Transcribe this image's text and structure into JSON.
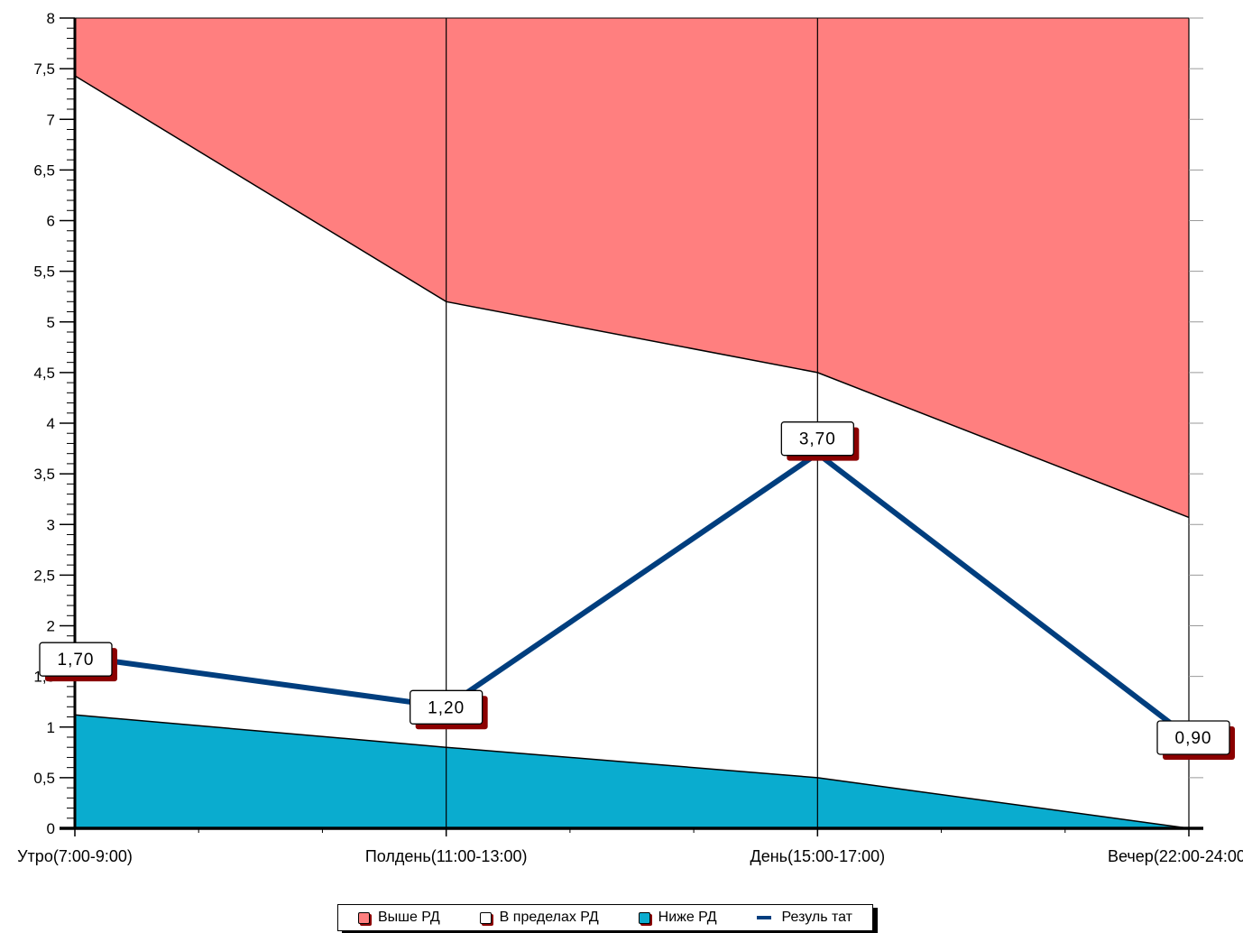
{
  "chart_data": {
    "type": "area",
    "categories": [
      "Утро(7:00-9:00)",
      "Полдень(11:00-13:00)",
      "День(15:00-17:00)",
      "Вечер(22:00-24:00)"
    ],
    "ylim": [
      0,
      8
    ],
    "yticks": [
      "0",
      "0,5",
      "1",
      "1,5",
      "2",
      "2,5",
      "3",
      "3,5",
      "4",
      "4,5",
      "5",
      "5,5",
      "6",
      "6,5",
      "7",
      "7,5",
      "8"
    ],
    "grid": "vertical lines at categories",
    "legend_position": "bottom-center",
    "series": [
      {
        "name": "Выше РД",
        "kind": "area",
        "color": "#ff7f7f",
        "values": [
          8,
          8,
          8,
          8
        ]
      },
      {
        "name": "В пределах РД",
        "kind": "area",
        "color": "#ffffff",
        "values": [
          7.43,
          5.2,
          4.5,
          3.07
        ]
      },
      {
        "name": "Ниже РД",
        "kind": "area",
        "color": "#0aaccf",
        "values": [
          1.12,
          0.8,
          0.5,
          0
        ]
      },
      {
        "name": "Резуль тат",
        "kind": "line",
        "color": "#003e7e",
        "values": [
          1.7,
          1.2,
          3.7,
          0.9
        ],
        "labels": [
          "1,70",
          "1,20",
          "3,70",
          "0,90"
        ]
      }
    ]
  }
}
